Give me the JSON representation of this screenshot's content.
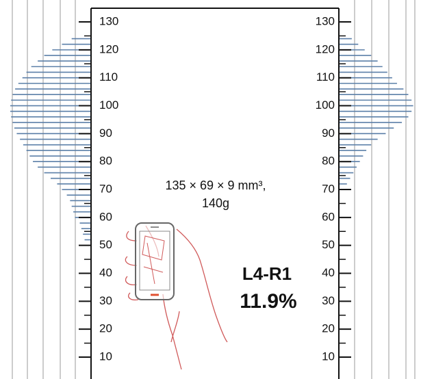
{
  "chart_data": {
    "type": "mirrored-histogram",
    "annotation_size": "135 × 69 × 9 mm³,",
    "annotation_weight": "140g",
    "condition": "L4-R1",
    "score": "11.9%",
    "ylim": [
      0,
      135
    ],
    "yticks": [
      10,
      20,
      30,
      40,
      50,
      60,
      70,
      80,
      90,
      100,
      110,
      120,
      130
    ],
    "categories": [
      52,
      54,
      56,
      58,
      60,
      62,
      64,
      66,
      68,
      70,
      72,
      74,
      76,
      78,
      80,
      82,
      84,
      86,
      88,
      90,
      92,
      94,
      96,
      98,
      100,
      102,
      104,
      106,
      108,
      110,
      112,
      114,
      116,
      118,
      120,
      122,
      124
    ],
    "series": [
      {
        "color": "#5b7fa8",
        "values": [
          8,
          10,
          12,
          14,
          20,
          22,
          24,
          26,
          30,
          36,
          42,
          50,
          58,
          66,
          72,
          76,
          80,
          84,
          88,
          92,
          95,
          97,
          99,
          100,
          100,
          99,
          97,
          94,
          90,
          85,
          80,
          74,
          66,
          58,
          48,
          36,
          24
        ]
      },
      {
        "color": "#5b7fa8",
        "values": [
          0,
          0,
          0,
          0,
          0,
          0,
          0,
          0,
          0,
          6,
          10,
          14,
          18,
          22,
          26,
          30,
          34,
          40,
          48,
          58,
          68,
          78,
          86,
          90,
          92,
          90,
          86,
          80,
          72,
          66,
          60,
          54,
          48,
          40,
          32,
          24,
          16
        ]
      }
    ]
  }
}
